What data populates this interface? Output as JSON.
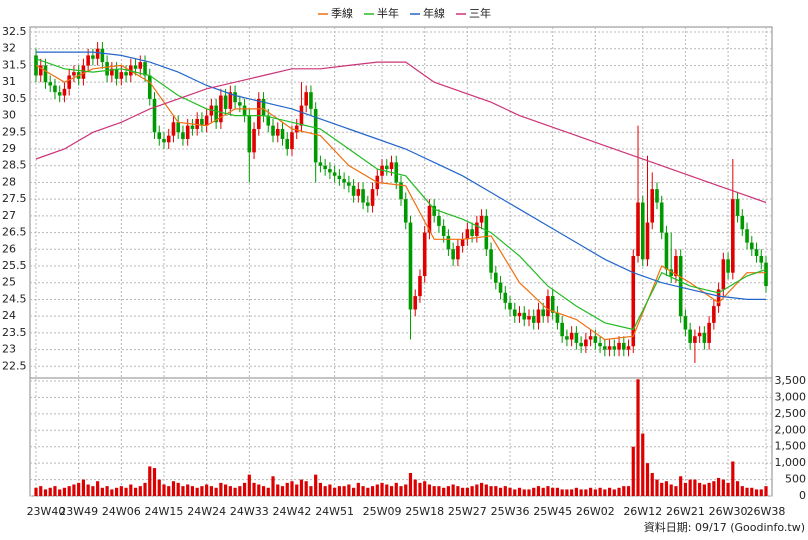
{
  "chart_data": {
    "type": "candlestick",
    "categories": [
      "23W40",
      null,
      null,
      null,
      null,
      null,
      null,
      null,
      null,
      "23W49",
      null,
      null,
      null,
      null,
      null,
      null,
      null,
      null,
      "24W06",
      null,
      null,
      null,
      null,
      null,
      null,
      null,
      null,
      "24W15",
      null,
      null,
      null,
      null,
      null,
      null,
      null,
      null,
      "24W24",
      null,
      null,
      null,
      null,
      null,
      null,
      null,
      null,
      "24W33",
      null,
      null,
      null,
      null,
      null,
      null,
      null,
      null,
      "24W42",
      null,
      null,
      null,
      null,
      null,
      null,
      null,
      null,
      "24W51",
      null,
      null,
      null,
      null,
      null,
      null,
      null,
      null,
      null,
      "25W09",
      null,
      null,
      null,
      null,
      null,
      null,
      null,
      null,
      "25W18",
      null,
      null,
      null,
      null,
      null,
      null,
      null,
      null,
      "25W27",
      null,
      null,
      null,
      null,
      null,
      null,
      null,
      null,
      "25W36",
      null,
      null,
      null,
      null,
      null,
      null,
      null,
      null,
      "25W45",
      null,
      null,
      null,
      null,
      null,
      null,
      null,
      null,
      "26W02",
      null,
      null,
      null,
      null,
      null,
      null,
      null,
      null,
      null,
      "26W12",
      null,
      null,
      null,
      null,
      null,
      null,
      null,
      null,
      "26W21",
      null,
      null,
      null,
      null,
      null,
      null,
      null,
      null,
      "26W30",
      null,
      null,
      null,
      null,
      null,
      null,
      null,
      "26W38"
    ],
    "open": [
      31.8,
      31.2,
      31.5,
      31.0,
      30.9,
      30.7,
      30.6,
      30.8,
      31.2,
      31.3,
      31.1,
      31.5,
      31.8,
      31.7,
      32.0,
      31.6,
      31.2,
      31.4,
      31.1,
      31.3,
      31.2,
      31.5,
      31.4,
      31.6,
      31.2,
      30.5,
      29.5,
      29.3,
      29.2,
      29.4,
      29.8,
      29.5,
      29.3,
      29.7,
      29.6,
      29.9,
      29.7,
      30.0,
      30.3,
      29.8,
      30.6,
      30.2,
      30.7,
      30.4,
      30.3,
      30.0,
      28.9,
      29.6,
      30.5,
      30.0,
      29.7,
      29.4,
      29.6,
      29.3,
      29.0,
      29.5,
      29.7,
      30.3,
      30.7,
      30.2,
      28.6,
      28.5,
      28.4,
      28.3,
      28.2,
      28.1,
      28.0,
      27.9,
      27.6,
      27.8,
      27.4,
      27.3,
      27.8,
      28.2,
      28.5,
      28.4,
      28.6,
      28.0,
      27.5,
      26.8,
      24.2,
      24.6,
      25.2,
      26.5,
      27.3,
      27.0,
      26.7,
      26.4,
      26.0,
      25.7,
      26.1,
      26.3,
      26.6,
      26.4,
      26.8,
      27.0,
      26.0,
      25.3,
      25.0,
      24.7,
      24.4,
      24.2,
      24.0,
      24.1,
      23.9,
      24.0,
      23.8,
      24.2,
      24.0,
      24.6,
      24.1,
      23.8,
      23.4,
      23.3,
      23.5,
      23.2,
      23.1,
      23.3,
      23.4,
      23.2,
      23.1,
      23.0,
      23.1,
      23.0,
      23.2,
      23.0,
      23.1,
      25.8,
      27.4,
      25.7,
      26.8,
      27.8,
      27.4,
      26.5,
      25.4,
      25.2,
      25.8,
      24.0,
      23.6,
      23.2,
      23.4,
      23.5,
      23.2,
      23.8,
      24.3,
      24.8,
      25.7,
      25.3,
      27.5,
      27.0,
      26.6,
      26.2,
      26.0,
      25.8,
      25.6
    ],
    "high": [
      32.0,
      31.7,
      31.7,
      31.2,
      31.1,
      30.9,
      31.0,
      31.4,
      31.5,
      31.5,
      31.7,
      32.0,
      32.0,
      32.2,
      32.2,
      31.8,
      31.6,
      31.6,
      31.5,
      31.5,
      31.7,
      31.7,
      31.8,
      31.8,
      31.4,
      30.7,
      29.7,
      29.5,
      29.6,
      30.0,
      30.0,
      29.7,
      29.9,
      29.9,
      30.1,
      30.1,
      30.2,
      30.5,
      30.5,
      30.8,
      30.8,
      30.9,
      30.9,
      30.6,
      30.5,
      30.2,
      29.8,
      30.7,
      30.7,
      30.2,
      29.9,
      29.8,
      29.8,
      29.5,
      29.7,
      29.9,
      31.0,
      30.9,
      30.9,
      30.4,
      28.8,
      28.7,
      28.6,
      28.5,
      28.4,
      28.3,
      28.2,
      28.1,
      28.0,
      28.0,
      27.6,
      28.0,
      28.4,
      28.7,
      28.7,
      28.8,
      28.8,
      28.2,
      27.7,
      27.0,
      24.8,
      25.4,
      26.7,
      27.5,
      27.5,
      27.2,
      26.9,
      26.6,
      26.2,
      26.3,
      26.5,
      26.8,
      26.8,
      27.0,
      27.2,
      27.2,
      26.2,
      25.5,
      25.2,
      24.9,
      24.6,
      24.4,
      24.3,
      24.3,
      24.2,
      24.2,
      24.4,
      24.4,
      24.8,
      24.8,
      24.3,
      24.0,
      23.6,
      23.7,
      23.7,
      23.4,
      23.5,
      23.6,
      23.6,
      23.4,
      23.3,
      23.3,
      23.3,
      23.4,
      23.4,
      23.3,
      26.0,
      29.7,
      27.6,
      28.8,
      28.3,
      28.0,
      27.6,
      26.7,
      26.5,
      26.0,
      26.0,
      24.2,
      23.8,
      23.6,
      23.7,
      23.7,
      24.0,
      24.5,
      25.0,
      25.9,
      25.9,
      28.7,
      27.7,
      27.2,
      26.8,
      26.4,
      26.2,
      26.0,
      25.8
    ],
    "low": [
      31.0,
      31.0,
      30.8,
      30.7,
      30.5,
      30.4,
      30.4,
      30.6,
      31.0,
      30.9,
      30.9,
      31.3,
      31.5,
      31.5,
      31.4,
      31.0,
      31.0,
      30.9,
      30.9,
      31.0,
      31.0,
      31.2,
      31.2,
      31.0,
      30.3,
      29.3,
      29.1,
      29.0,
      29.0,
      29.2,
      29.3,
      29.1,
      29.1,
      29.4,
      29.4,
      29.5,
      29.5,
      29.8,
      29.6,
      29.6,
      30.0,
      30.0,
      30.2,
      30.1,
      29.8,
      28.0,
      28.7,
      29.4,
      29.8,
      29.5,
      29.2,
      29.2,
      29.1,
      28.8,
      28.8,
      29.3,
      29.5,
      30.1,
      30.0,
      28.0,
      28.3,
      28.2,
      28.1,
      28.0,
      27.9,
      27.8,
      27.7,
      27.4,
      27.4,
      27.2,
      27.1,
      27.1,
      27.6,
      28.0,
      28.2,
      28.2,
      27.8,
      27.3,
      26.6,
      23.3,
      24.0,
      24.4,
      25.0,
      26.3,
      26.8,
      26.5,
      26.2,
      25.8,
      25.5,
      25.5,
      25.9,
      26.1,
      26.2,
      26.2,
      26.6,
      25.8,
      25.1,
      24.8,
      24.5,
      24.2,
      24.0,
      23.8,
      23.8,
      23.7,
      23.7,
      23.6,
      23.6,
      23.8,
      23.8,
      23.9,
      23.6,
      23.2,
      23.1,
      23.1,
      23.0,
      22.9,
      22.9,
      23.1,
      23.0,
      22.9,
      22.8,
      22.8,
      22.8,
      22.8,
      22.8,
      22.8,
      22.9,
      25.6,
      25.5,
      25.5,
      26.6,
      27.2,
      26.3,
      25.2,
      25.0,
      25.0,
      23.8,
      23.4,
      23.0,
      22.6,
      23.2,
      23.0,
      23.0,
      23.6,
      24.1,
      24.6,
      25.1,
      25.1,
      26.8,
      26.4,
      26.0,
      25.8,
      25.6,
      25.4,
      24.7
    ],
    "close": [
      31.2,
      31.5,
      31.0,
      30.9,
      30.7,
      30.6,
      30.8,
      31.2,
      31.3,
      31.1,
      31.5,
      31.8,
      31.7,
      32.0,
      31.6,
      31.2,
      31.4,
      31.1,
      31.3,
      31.2,
      31.5,
      31.4,
      31.6,
      31.2,
      30.5,
      29.5,
      29.3,
      29.2,
      29.4,
      29.8,
      29.5,
      29.3,
      29.7,
      29.6,
      29.9,
      29.7,
      30.0,
      30.3,
      29.8,
      30.6,
      30.2,
      30.7,
      30.4,
      30.3,
      30.0,
      28.9,
      29.6,
      30.5,
      30.0,
      29.7,
      29.4,
      29.6,
      29.3,
      29.0,
      29.5,
      29.7,
      30.3,
      30.7,
      30.2,
      28.6,
      28.5,
      28.4,
      28.3,
      28.2,
      28.1,
      28.0,
      27.9,
      27.6,
      27.8,
      27.4,
      27.3,
      27.8,
      28.2,
      28.5,
      28.4,
      28.6,
      28.0,
      27.5,
      26.8,
      24.2,
      24.6,
      25.2,
      26.5,
      27.3,
      27.0,
      26.7,
      26.4,
      26.0,
      25.7,
      26.1,
      26.3,
      26.6,
      26.4,
      26.8,
      27.0,
      26.0,
      25.3,
      25.0,
      24.7,
      24.4,
      24.2,
      24.0,
      24.1,
      23.9,
      24.0,
      23.8,
      24.2,
      24.0,
      24.6,
      24.1,
      23.8,
      23.4,
      23.3,
      23.5,
      23.2,
      23.1,
      23.3,
      23.4,
      23.2,
      23.1,
      23.0,
      23.1,
      23.0,
      23.2,
      23.0,
      23.1,
      25.8,
      27.4,
      25.7,
      26.8,
      27.8,
      27.4,
      26.5,
      25.4,
      25.2,
      25.8,
      24.0,
      23.6,
      23.2,
      23.4,
      23.5,
      23.2,
      23.8,
      24.3,
      24.8,
      25.7,
      25.3,
      27.5,
      27.0,
      26.6,
      26.2,
      26.0,
      25.8,
      25.6,
      24.9
    ],
    "up_color": "#e00000",
    "down_color": "#009900",
    "series": [
      {
        "name": "季線",
        "color": "#f07010",
        "x": [
          0,
          6,
          12,
          18,
          24,
          30,
          36,
          42,
          48,
          54,
          60,
          66,
          72,
          78,
          84,
          90,
          96,
          102,
          108,
          114,
          120,
          126,
          132,
          138,
          144,
          150,
          154
        ],
        "values": [
          31.5,
          31.0,
          31.4,
          31.5,
          31.0,
          29.8,
          29.7,
          30.2,
          30.2,
          29.6,
          29.4,
          28.5,
          28.0,
          27.9,
          26.3,
          26.3,
          26.4,
          25.0,
          24.2,
          23.9,
          23.3,
          23.4,
          25.5,
          25.0,
          24.4,
          25.3,
          25.3
        ]
      },
      {
        "name": "半年",
        "color": "#22bb22",
        "x": [
          0,
          6,
          12,
          18,
          24,
          30,
          36,
          42,
          48,
          54,
          60,
          66,
          72,
          78,
          84,
          90,
          96,
          102,
          108,
          114,
          120,
          126,
          132,
          138,
          144,
          150,
          154
        ],
        "values": [
          31.7,
          31.4,
          31.3,
          31.4,
          31.2,
          30.6,
          30.2,
          30.0,
          30.0,
          29.8,
          29.6,
          29.0,
          28.4,
          28.2,
          27.2,
          26.9,
          26.5,
          25.8,
          24.9,
          24.3,
          23.8,
          23.6,
          25.3,
          24.9,
          24.7,
          25.2,
          25.4
        ]
      },
      {
        "name": "年線",
        "color": "#2266cc",
        "x": [
          0,
          6,
          12,
          18,
          24,
          30,
          36,
          42,
          48,
          54,
          60,
          66,
          72,
          78,
          84,
          90,
          96,
          102,
          108,
          114,
          120,
          126,
          132,
          138,
          144,
          150,
          154
        ],
        "values": [
          31.9,
          31.9,
          31.9,
          31.8,
          31.6,
          31.3,
          30.9,
          30.6,
          30.4,
          30.2,
          29.9,
          29.6,
          29.3,
          29.0,
          28.6,
          28.2,
          27.7,
          27.2,
          26.7,
          26.2,
          25.7,
          25.3,
          25.0,
          24.8,
          24.6,
          24.5,
          24.5
        ]
      },
      {
        "name": "三年",
        "color": "#cc3377",
        "x": [
          0,
          6,
          12,
          18,
          24,
          30,
          36,
          42,
          48,
          54,
          60,
          66,
          72,
          78,
          84,
          90,
          96,
          102,
          108,
          114,
          120,
          126,
          132,
          138,
          144,
          150,
          154
        ],
        "values": [
          28.7,
          29.0,
          29.5,
          29.8,
          30.2,
          30.5,
          30.8,
          31.0,
          31.2,
          31.4,
          31.4,
          31.5,
          31.6,
          31.6,
          31.0,
          30.7,
          30.4,
          30.0,
          29.7,
          29.4,
          29.1,
          28.8,
          28.5,
          28.2,
          27.9,
          27.6,
          27.4
        ]
      }
    ],
    "ylim": [
      22.15,
      32.65
    ],
    "yticks": [
      22.5,
      23,
      23.5,
      24,
      24.5,
      25,
      25.5,
      26,
      26.5,
      27,
      27.5,
      28,
      28.5,
      29,
      29.5,
      30,
      30.5,
      31,
      31.5,
      32,
      32.5
    ],
    "grid": true,
    "volume": {
      "color": "#dd0000",
      "values": [
        250,
        300,
        200,
        250,
        300,
        200,
        250,
        300,
        350,
        400,
        500,
        350,
        300,
        450,
        250,
        300,
        200,
        250,
        300,
        250,
        350,
        250,
        300,
        400,
        900,
        850,
        500,
        350,
        300,
        450,
        400,
        300,
        350,
        300,
        250,
        300,
        350,
        300,
        250,
        400,
        350,
        300,
        250,
        300,
        400,
        650,
        400,
        350,
        300,
        250,
        600,
        350,
        300,
        400,
        450,
        350,
        500,
        450,
        300,
        650,
        400,
        300,
        350,
        250,
        300,
        300,
        350,
        250,
        400,
        300,
        250,
        300,
        350,
        400,
        350,
        300,
        400,
        300,
        350,
        700,
        500,
        400,
        450,
        350,
        300,
        300,
        250,
        300,
        350,
        300,
        250,
        250,
        300,
        350,
        400,
        350,
        300,
        300,
        250,
        300,
        250,
        200,
        250,
        200,
        200,
        250,
        300,
        250,
        300,
        250,
        250,
        200,
        200,
        200,
        250,
        200,
        200,
        250,
        200,
        250,
        200,
        250,
        200,
        250,
        300,
        300,
        1500,
        3550,
        1900,
        1000,
        700,
        500,
        400,
        450,
        350,
        300,
        600,
        400,
        500,
        500,
        400,
        350,
        400,
        450,
        550,
        500,
        400,
        1050,
        450,
        300,
        250,
        250,
        200,
        200,
        300
      ],
      "ylim": [
        0,
        3590
      ],
      "yticks": [
        0,
        500,
        {
          "value": 1000,
          "label": "1,000"
        },
        {
          "value": 1500,
          "label": "1,500"
        },
        {
          "value": 2000,
          "label": "2,000"
        },
        {
          "value": 2500,
          "label": "2,500"
        },
        {
          "value": 3000,
          "label": "3,000"
        },
        {
          "value": 3500,
          "label": "3,500"
        }
      ]
    },
    "footnote": "資料日期: 09/17  (Goodinfo.tw)"
  }
}
